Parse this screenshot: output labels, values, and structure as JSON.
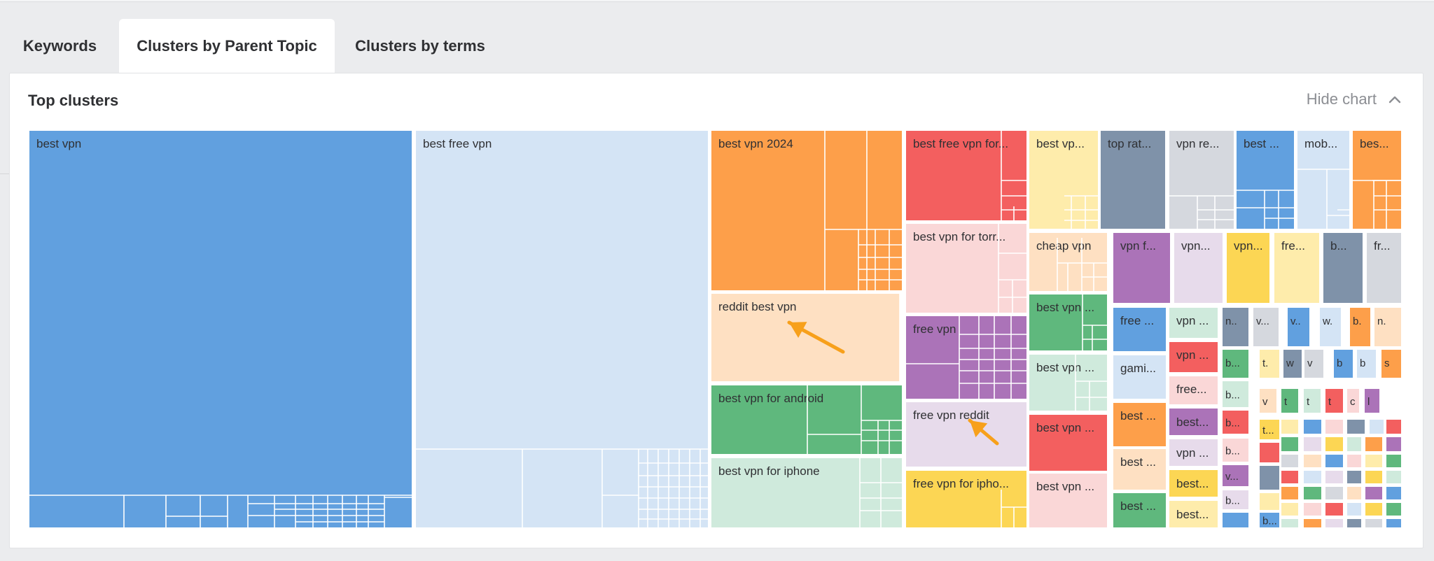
{
  "tabs": [
    {
      "label": "Keywords",
      "active": false
    },
    {
      "label": "Clusters by Parent Topic",
      "active": true
    },
    {
      "label": "Clusters by terms",
      "active": false
    }
  ],
  "panel": {
    "title": "Top clusters",
    "hide_chart_label": "Hide chart",
    "collapse_icon": "chevron-up-icon"
  },
  "colors": {
    "blue": "#61a0df",
    "light_blue": "#d4e4f5",
    "orange": "#fd9f4a",
    "peach": "#fee0c2",
    "green": "#5fb87d",
    "mint": "#cfeadc",
    "red": "#f35f5f",
    "pink": "#fad7d7",
    "purple": "#ab73b8",
    "lavender": "#e7dbeb",
    "yellow": "#fcd654",
    "light_yellow": "#feecab",
    "slate": "#7f92a9",
    "light_gray": "#d5d8de",
    "arrow": "#f7a01b"
  },
  "treemap": {
    "cells": [
      {
        "label": "best vpn",
        "color": "blue"
      },
      {
        "label": "best free vpn",
        "color": "light_blue"
      },
      {
        "label": "best vpn 2024",
        "color": "orange"
      },
      {
        "label": "reddit best vpn",
        "color": "peach"
      },
      {
        "label": "best vpn for android",
        "color": "green"
      },
      {
        "label": "best vpn for iphone",
        "color": "mint"
      },
      {
        "label": "best free vpn for...",
        "color": "red"
      },
      {
        "label": "best vpn for torr...",
        "color": "pink"
      },
      {
        "label": "free vpn",
        "color": "purple"
      },
      {
        "label": "free vpn reddit",
        "color": "lavender"
      },
      {
        "label": "free vpn for ipho...",
        "color": "yellow"
      },
      {
        "label": "best vp...",
        "color": "light_yellow"
      },
      {
        "label": "top rat...",
        "color": "slate"
      },
      {
        "label": "vpn re...",
        "color": "light_gray"
      },
      {
        "label": "best ...",
        "color": "blue"
      },
      {
        "label": "mob...",
        "color": "light_blue"
      },
      {
        "label": "bes...",
        "color": "orange"
      },
      {
        "label": "cheap vpn",
        "color": "peach"
      },
      {
        "label": "vpn f...",
        "color": "purple"
      },
      {
        "label": "vpn...",
        "color": "lavender"
      },
      {
        "label": "vpn...",
        "color": "yellow"
      },
      {
        "label": "fre...",
        "color": "light_yellow"
      },
      {
        "label": "b...",
        "color": "slate"
      },
      {
        "label": "fr...",
        "color": "light_gray"
      },
      {
        "label": "best vpn ...",
        "color": "green"
      },
      {
        "label": "best vpn ...",
        "color": "mint"
      },
      {
        "label": "best vpn ...",
        "color": "red"
      },
      {
        "label": "best vpn ...",
        "color": "pink"
      },
      {
        "label": "free ...",
        "color": "blue"
      },
      {
        "label": "gami...",
        "color": "light_blue"
      },
      {
        "label": "best ...",
        "color": "orange"
      },
      {
        "label": "best ...",
        "color": "peach"
      },
      {
        "label": "best ...",
        "color": "green"
      },
      {
        "label": "vpn ...",
        "color": "mint"
      },
      {
        "label": "vpn ...",
        "color": "red"
      },
      {
        "label": "free...",
        "color": "pink"
      },
      {
        "label": "best...",
        "color": "purple"
      },
      {
        "label": "vpn ...",
        "color": "lavender"
      },
      {
        "label": "best...",
        "color": "yellow"
      },
      {
        "label": "best...",
        "color": "light_yellow"
      },
      {
        "label": "n..",
        "color": "slate"
      },
      {
        "label": "v...",
        "color": "light_gray"
      },
      {
        "label": "v..",
        "color": "blue"
      },
      {
        "label": "w.",
        "color": "light_blue"
      },
      {
        "label": "b.",
        "color": "orange"
      },
      {
        "label": "n.",
        "color": "peach"
      },
      {
        "label": "b...",
        "color": "green"
      },
      {
        "label": "t.",
        "color": "light_yellow"
      },
      {
        "label": "w",
        "color": "slate"
      },
      {
        "label": "v",
        "color": "light_gray"
      },
      {
        "label": "b",
        "color": "blue"
      },
      {
        "label": "b",
        "color": "light_blue"
      },
      {
        "label": "s",
        "color": "orange"
      },
      {
        "label": "b...",
        "color": "mint"
      },
      {
        "label": "b...",
        "color": "red"
      },
      {
        "label": "b...",
        "color": "pink"
      },
      {
        "label": "v...",
        "color": "purple"
      },
      {
        "label": "b...",
        "color": "lavender"
      },
      {
        "label": "v",
        "color": "peach"
      },
      {
        "label": "t",
        "color": "green"
      },
      {
        "label": "t",
        "color": "mint"
      },
      {
        "label": "t",
        "color": "red"
      },
      {
        "label": "c",
        "color": "pink"
      },
      {
        "label": "l",
        "color": "purple"
      },
      {
        "label": "t...",
        "color": "yellow"
      },
      {
        "label": "b...",
        "color": "blue"
      }
    ]
  }
}
